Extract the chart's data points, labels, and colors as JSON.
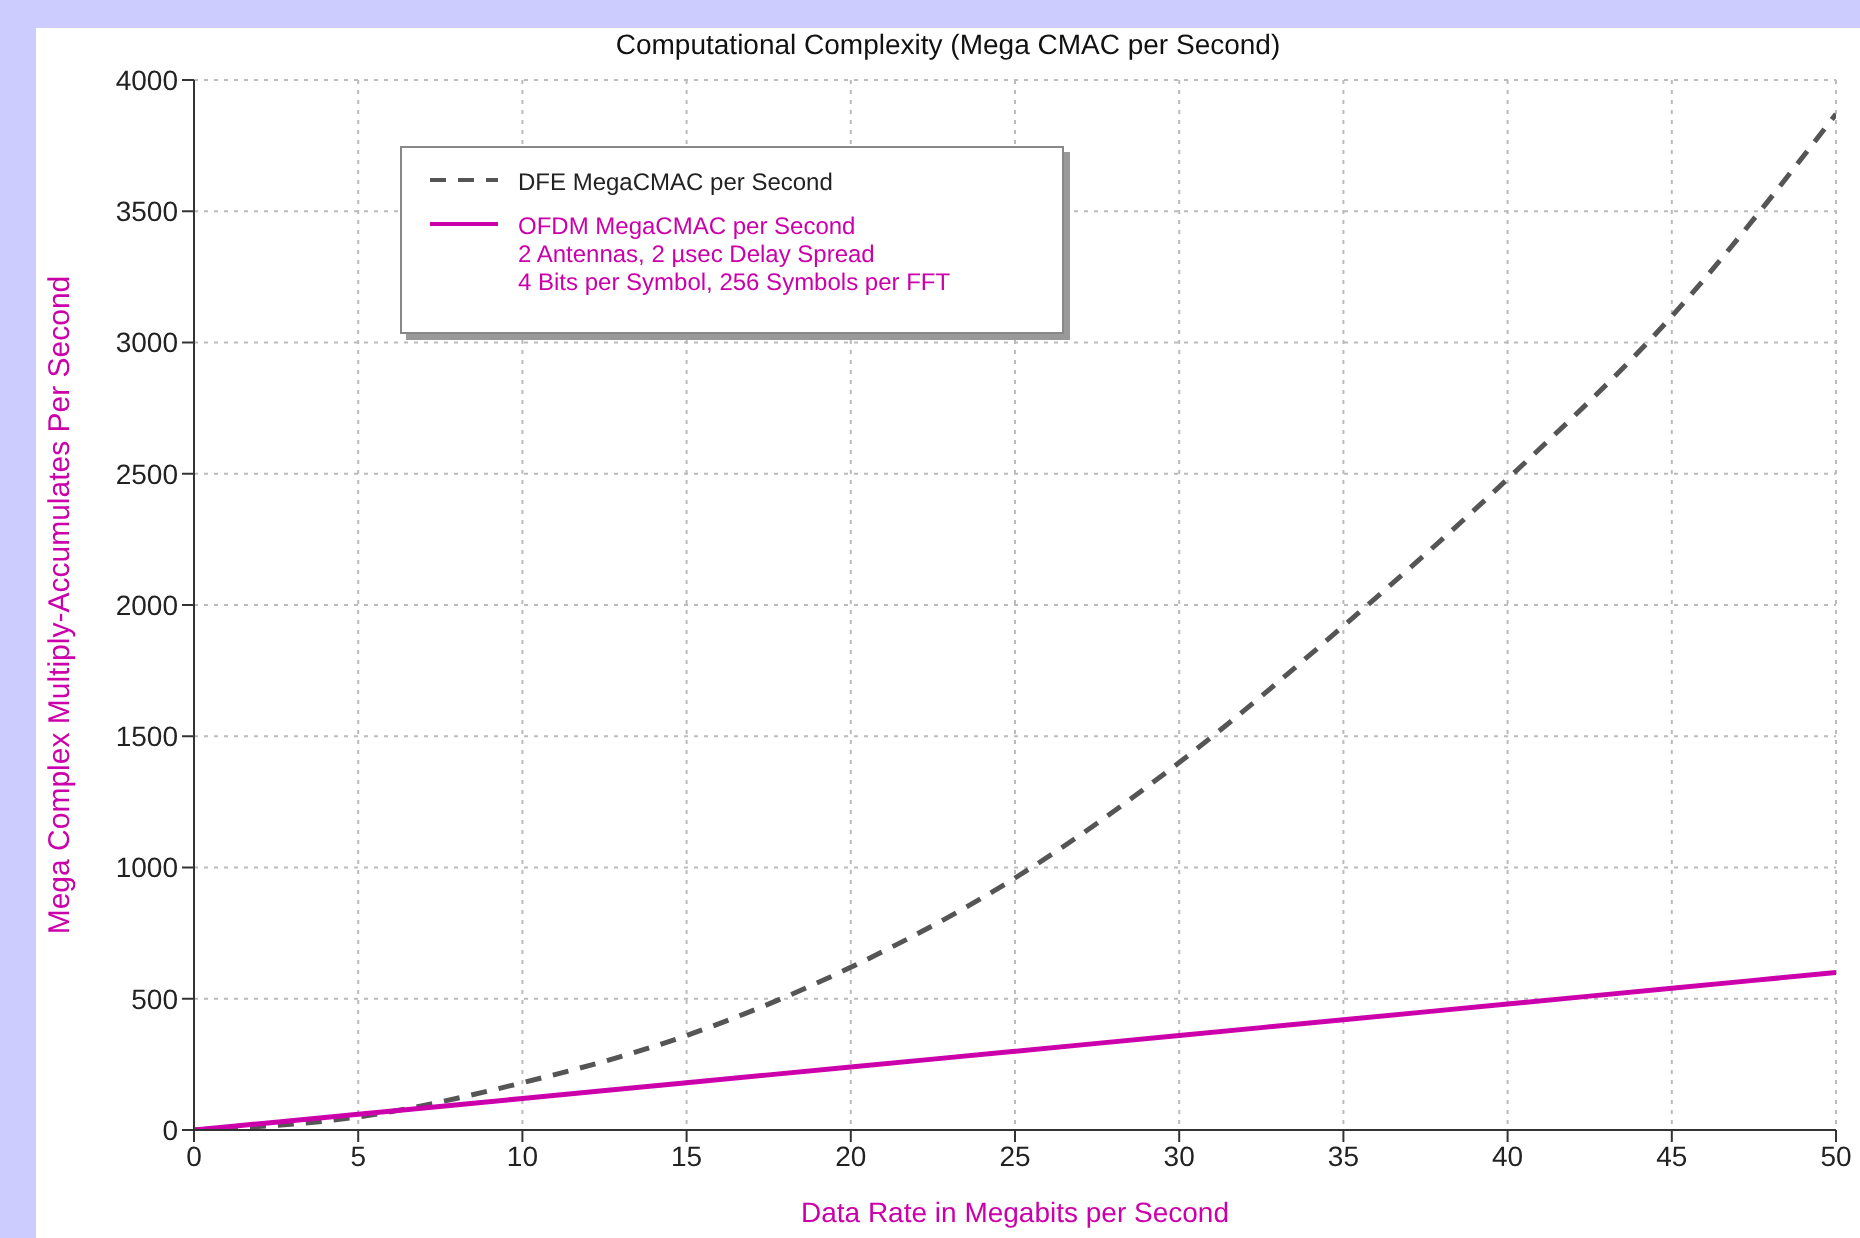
{
  "chart_data": {
    "type": "line",
    "title": "Computational Complexity (Mega CMAC per Second)",
    "xlabel": "Data Rate in Megabits per Second",
    "ylabel": "Mega Complex Multiply-Accumulates Per Second",
    "x": [
      0,
      5,
      10,
      15,
      20,
      25,
      30,
      35,
      40,
      45,
      50
    ],
    "series": [
      {
        "name": "DFE MegaCMAC per Second",
        "color": "#555555",
        "line_style": "dashed",
        "values": [
          0,
          50,
          180,
          360,
          620,
          960,
          1400,
          1920,
          2480,
          3100,
          3870
        ]
      },
      {
        "name": "OFDM MegaCMAC per Second\n2 Antennas, 2 µsec Delay Spread\n4 Bits per Symbol, 256 Symbols per FFT",
        "color": "#cc00aa",
        "line_style": "solid",
        "values": [
          0,
          60,
          120,
          180,
          240,
          300,
          360,
          420,
          480,
          540,
          600
        ]
      }
    ],
    "xlim": [
      0,
      50
    ],
    "xticks": [
      0,
      5,
      10,
      15,
      20,
      25,
      30,
      35,
      40,
      45,
      50
    ],
    "ylim": [
      0,
      4000
    ],
    "yticks": [
      0,
      500,
      1000,
      1500,
      2000,
      2500,
      3000,
      3500,
      4000
    ],
    "grid": true,
    "legend": "top left"
  }
}
